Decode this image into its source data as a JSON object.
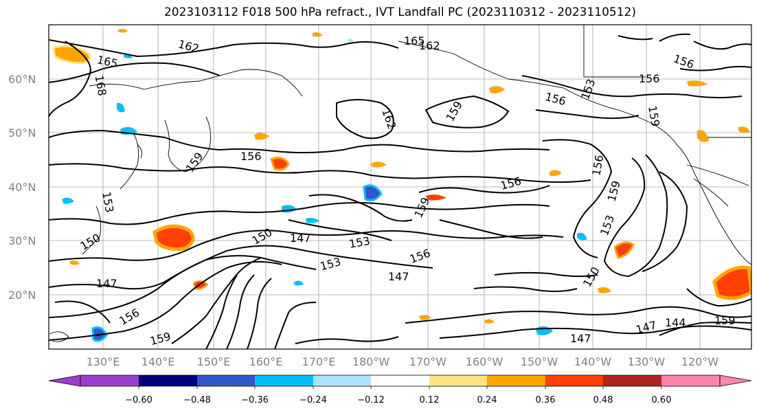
{
  "title": "2023103112 F018 500 hPa refract., IVT Landfall PC (2023110312 - 2023110512)",
  "lat_labels": [
    "20°N",
    "30°N",
    "40°N",
    "50°N",
    "60°N"
  ],
  "lon_labels": [
    "130°E",
    "140°E",
    "150°E",
    "160°E",
    "170°E",
    "180°W",
    "170°W",
    "160°W",
    "150°W",
    "140°W",
    "130°W",
    "120°W"
  ],
  "contour_labels": [
    "162",
    "165",
    "168",
    "165",
    "162",
    "162",
    "159",
    "156",
    "156",
    "153",
    "159",
    "156",
    "156",
    "156",
    "159",
    "153",
    "153",
    "150",
    "150",
    "147",
    "153",
    "156",
    "147",
    "150",
    "147",
    "156",
    "159",
    "147",
    "147",
    "144",
    "159",
    "153",
    "159",
    "156",
    "159"
  ],
  "colorbar": {
    "ticks": [
      "−0.60",
      "−0.48",
      "−0.36",
      "−0.24",
      "−0.12",
      "0.12",
      "0.24",
      "0.36",
      "0.48",
      "0.60"
    ],
    "colors": [
      "#9b3dcf",
      "#00007f",
      "#3355cc",
      "#00bfff",
      "#b0e2ff",
      "#ffffff",
      "#ffe680",
      "#ffa500",
      "#ff4000",
      "#b22222",
      "#ff85b0"
    ]
  }
}
